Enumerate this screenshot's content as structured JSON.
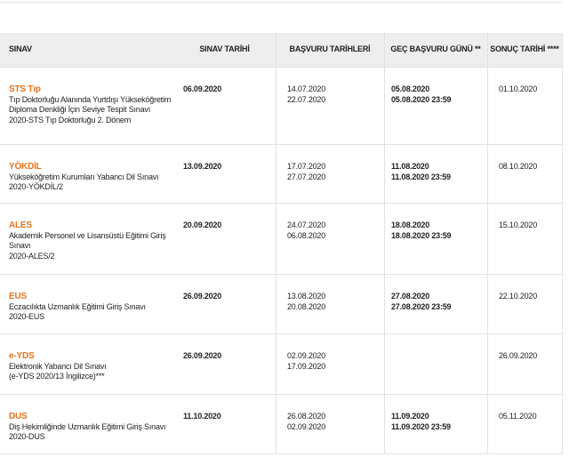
{
  "table": {
    "headers": [
      "SINAV",
      "SINAV TARİHİ",
      "BAŞVURU TARİHLERİ",
      "GEÇ BAŞVURU GÜNÜ **",
      "SONUÇ TARİHİ ****"
    ],
    "rows": [
      {
        "name": "STS Tıp",
        "description": [
          "Tıp Doktorluğu Alanında Yurtdışı Yükseköğretim",
          "Diploma Denkliği İçin Seviye Tespit Sınavı",
          "2020-STS Tıp Doktorluğu 2. Dönem"
        ],
        "exam_date": "06.09.2020",
        "application": [
          "14.07.2020",
          "22.07.2020"
        ],
        "late_application": [
          "05.08.2020",
          "05.08.2020 23:59"
        ],
        "result_date": "01.10.2020"
      },
      {
        "name": "YÖKDİL",
        "description": [
          "Yükseköğretim Kurumları Yabancı Dil Sınavı",
          "2020-YÖKDİL/2"
        ],
        "exam_date": "13.09.2020",
        "application": [
          "17.07.2020",
          "27.07.2020"
        ],
        "late_application": [
          "11.08.2020",
          "11.08.2020 23:59"
        ],
        "result_date": "08.10.2020"
      },
      {
        "name": "ALES",
        "description": [
          "Akademik Personel ve Lisansüstü Eğitimi Giriş",
          "Sınavı",
          "2020-ALES/2"
        ],
        "exam_date": "20.09.2020",
        "application": [
          "24.07.2020",
          "06.08.2020"
        ],
        "late_application": [
          "18.08.2020",
          "18.08.2020 23:59"
        ],
        "result_date": "15.10.2020"
      },
      {
        "name": "EUS",
        "description": [
          "Eczacılıkta Uzmanlık Eğitimi Giriş Sınavı",
          "2020-EUS"
        ],
        "exam_date": "26.09.2020",
        "application": [
          "13.08.2020",
          "20.08.2020"
        ],
        "late_application": [
          "27.08.2020",
          "27.08.2020 23:59"
        ],
        "result_date": "22.10.2020"
      },
      {
        "name": "e-YDS",
        "description": [
          "Elektronik Yabancı Dil Sınavı",
          "(e-YDS 2020/13 İngilizce)***"
        ],
        "exam_date": "26.09.2020",
        "application": [
          "02.09.2020",
          "17.09.2020"
        ],
        "late_application": [],
        "result_date": "26.09.2020"
      },
      {
        "name": "DUS",
        "description": [
          "Diş Hekimliğinde Uzmanlık Eğitimi Giriş Sınavı",
          "2020-DUS"
        ],
        "exam_date": "11.10.2020",
        "application": [
          "26.08.2020",
          "02.09.2020"
        ],
        "late_application": [
          "11.09.2020",
          "11.09.2020 23:59"
        ],
        "result_date": "05.11.2020"
      }
    ]
  }
}
